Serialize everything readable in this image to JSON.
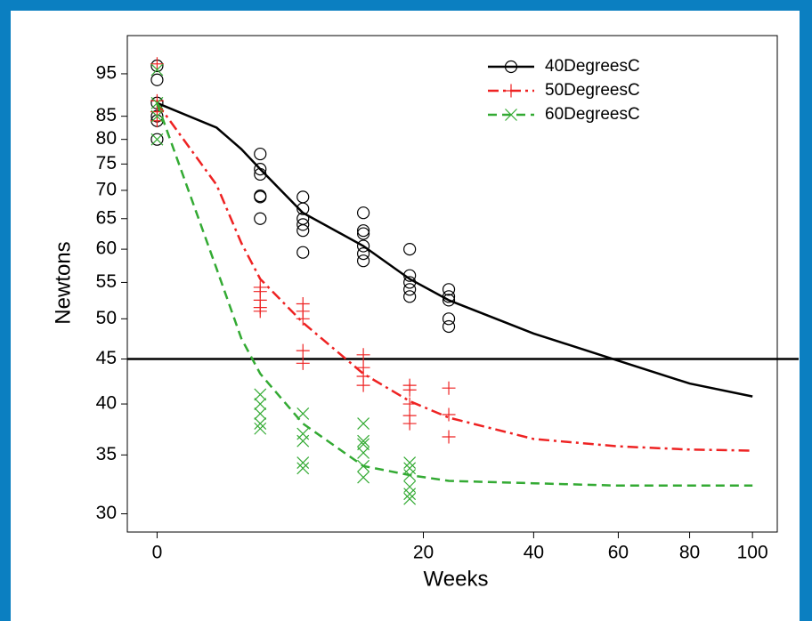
{
  "chart_data": {
    "type": "scatter",
    "x_label": "Weeks",
    "y_label": "Newtons",
    "x_scale": "sqrt",
    "y_scale": "log",
    "xlim": [
      -0.25,
      108.5
    ],
    "ylim": [
      28.6,
      105
    ],
    "xticks": [
      0,
      20,
      40,
      60,
      80,
      100
    ],
    "yticks": [
      30,
      35,
      40,
      45,
      50,
      55,
      60,
      65,
      70,
      75,
      80,
      85,
      95
    ],
    "reference_line": 45,
    "legend": "top-right",
    "fit_x": [
      0,
      1,
      2,
      3,
      6,
      12,
      18,
      24,
      40,
      60,
      80,
      100
    ],
    "series": [
      {
        "name": "40DegreesC",
        "color": "#000000",
        "marker": "circle",
        "line_style": "solid",
        "x": [
          0,
          0,
          0,
          0,
          0,
          0,
          3,
          3,
          3,
          3,
          3,
          3,
          6,
          6,
          6,
          6,
          6,
          6,
          12,
          12,
          12,
          12,
          12,
          12,
          18,
          18,
          18,
          18,
          18,
          24,
          24,
          24,
          24,
          24
        ],
        "values": [
          97,
          93.5,
          88,
          85,
          84,
          80,
          77,
          74,
          73,
          69,
          68.8,
          65,
          68.8,
          66.7,
          65,
          64,
          63,
          59.5,
          66,
          63,
          62.5,
          60.5,
          59.3,
          58.2,
          60,
          56,
          55,
          54,
          53,
          54,
          53,
          52.5,
          50,
          49
        ],
        "fit_values": [
          88,
          82.5,
          78,
          74,
          66,
          60.5,
          55.5,
          52.5,
          48.1,
          44.8,
          42.2,
          40.8
        ]
      },
      {
        "name": "50DegreesC",
        "color": "#ee2222",
        "marker": "plus",
        "line_style": "dashdot",
        "x": [
          0,
          0,
          0,
          0,
          3,
          3,
          3,
          3,
          3,
          6,
          6,
          6,
          6,
          6,
          12,
          12,
          12,
          12,
          18,
          18,
          18,
          18,
          18,
          24,
          24,
          24
        ],
        "values": [
          97.5,
          88.5,
          86,
          84,
          54.3,
          53.7,
          52.5,
          51.5,
          51,
          52,
          51,
          50,
          46,
          44.5,
          45.5,
          44,
          43,
          42,
          42,
          41.5,
          40,
          38.8,
          38,
          41.7,
          38.9,
          36.7
        ],
        "fit_values": [
          88,
          71,
          61,
          55.5,
          49.5,
          43.3,
          40.3,
          38.6,
          36.5,
          35.8,
          35.5,
          35.4
        ]
      },
      {
        "name": "60DegreesC",
        "color": "#33aa33",
        "marker": "x",
        "line_style": "dashed",
        "x": [
          0,
          0,
          0,
          0,
          3,
          3,
          3,
          3,
          3,
          6,
          6,
          6,
          6,
          6,
          12,
          12,
          12,
          12,
          12,
          12,
          18,
          18,
          18,
          18,
          18,
          18
        ],
        "values": [
          96,
          88,
          85,
          80,
          41,
          40,
          39,
          38,
          37.5,
          39,
          37,
          36.3,
          34.3,
          33.8,
          38,
          36.3,
          36,
          35.2,
          34,
          33,
          34.3,
          33.8,
          33.2,
          32.2,
          31.6,
          31.2
        ],
        "fit_values": [
          88,
          57,
          47.5,
          43.3,
          38,
          34,
          33.2,
          32.7,
          32.5,
          32.3,
          32.3,
          32.3
        ]
      }
    ]
  }
}
